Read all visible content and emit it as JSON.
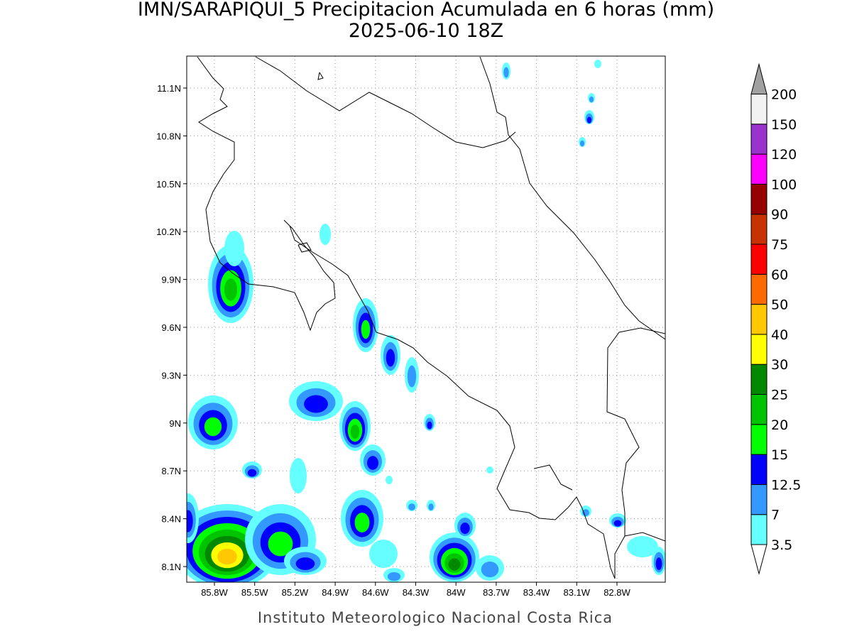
{
  "header": {
    "title": "IMN/SARAPIQUI_5 Precipitacion Acumulada en 6 horas (mm)",
    "subtitle": "2025-06-10 18Z"
  },
  "map": {
    "lon_labels": [
      "85.8W",
      "85.5W",
      "85.2W",
      "84.9W",
      "84.6W",
      "84.3W",
      "84W",
      "83.7W",
      "83.4W",
      "83.1W",
      "82.8W"
    ],
    "lat_labels": [
      "11.1N",
      "10.8N",
      "10.5N",
      "10.2N",
      "9.9N",
      "9.6N",
      "9.3N",
      "9N",
      "8.7N",
      "8.4N",
      "8.1N"
    ]
  },
  "colorbar": {
    "levels": [
      3.5,
      7,
      12.5,
      15,
      20,
      25,
      30,
      40,
      50,
      60,
      75,
      90,
      100,
      120,
      150,
      200
    ],
    "colors": [
      "#ffffff",
      "#66ffff",
      "#3399ff",
      "#0000ff",
      "#00ff00",
      "#00c400",
      "#008800",
      "#ffff00",
      "#ffc800",
      "#ff6a00",
      "#ff0000",
      "#c83200",
      "#960000",
      "#ff00ff",
      "#9a32cd",
      "#f2f2f2",
      "#a0a0a0"
    ]
  },
  "footer": {
    "credit": "Instituto Meteorologico Nacional Costa Rica"
  }
}
